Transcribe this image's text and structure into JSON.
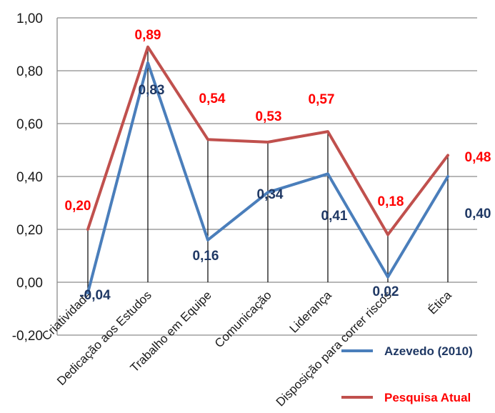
{
  "chart_data": {
    "type": "line",
    "categories": [
      "Criatividade",
      "Dedicação aos Estudos",
      "Trabalho em Equipe",
      "Comunicação",
      "Liderança",
      "Disposição para correr riscos",
      "Ética"
    ],
    "series": [
      {
        "name": "Azevedo (2010)",
        "color": "#4a7ebb",
        "label_color": "#1f3864",
        "values": [
          -0.04,
          0.83,
          0.16,
          0.34,
          0.41,
          0.02,
          0.4
        ],
        "labels": [
          "-0,04",
          "0,83",
          "0,16",
          "0,34",
          "0,41",
          "0,02",
          "0,40"
        ]
      },
      {
        "name": "Pesquisa Atual",
        "color": "#c0504d",
        "label_color": "#ff0000",
        "values": [
          0.2,
          0.89,
          0.54,
          0.53,
          0.57,
          0.18,
          0.48
        ],
        "labels": [
          "0,20",
          "0,89",
          "0,54",
          "0,53",
          "0,57",
          "0,18",
          "0,48"
        ]
      }
    ],
    "ylim": [
      -0.2,
      1.0
    ],
    "yticks": [
      1.0,
      0.8,
      0.6,
      0.4,
      0.2,
      0.0,
      -0.2
    ],
    "ytick_labels": [
      "1,00",
      "0,80",
      "0,60",
      "0,40",
      "0,20",
      "0,00",
      "-0,20"
    ],
    "grid": true,
    "drop_lines": true,
    "legend_position": "bottom-right"
  }
}
